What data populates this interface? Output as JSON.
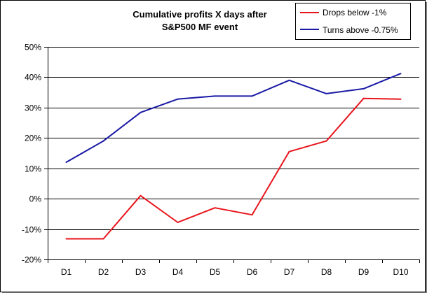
{
  "chart_data": {
    "type": "line",
    "title_lines": [
      "Cumulative profits X days after",
      "S&P500 MF event"
    ],
    "categories": [
      "D1",
      "D2",
      "D3",
      "D4",
      "D5",
      "D6",
      "D7",
      "D8",
      "D9",
      "D10"
    ],
    "y_ticks": [
      "50%",
      "40%",
      "30%",
      "20%",
      "10%",
      "0%",
      "-10%",
      "-20%"
    ],
    "ylim": [
      -20,
      50
    ],
    "y_unit": "percent",
    "grid": "horizontal",
    "legend_position": "top-right",
    "series": [
      {
        "name": "Drops below -1%",
        "color": "#e8141c",
        "values": [
          -13.2,
          -13.2,
          1.0,
          -7.8,
          -3.0,
          -5.3,
          15.5,
          19.0,
          33.0,
          32.8
        ]
      },
      {
        "name": "Turns above -0.75%",
        "color": "#1a1aa6",
        "values": [
          12.0,
          19.0,
          28.4,
          32.8,
          33.8,
          33.8,
          39.0,
          34.6,
          36.2,
          41.2
        ]
      }
    ]
  }
}
